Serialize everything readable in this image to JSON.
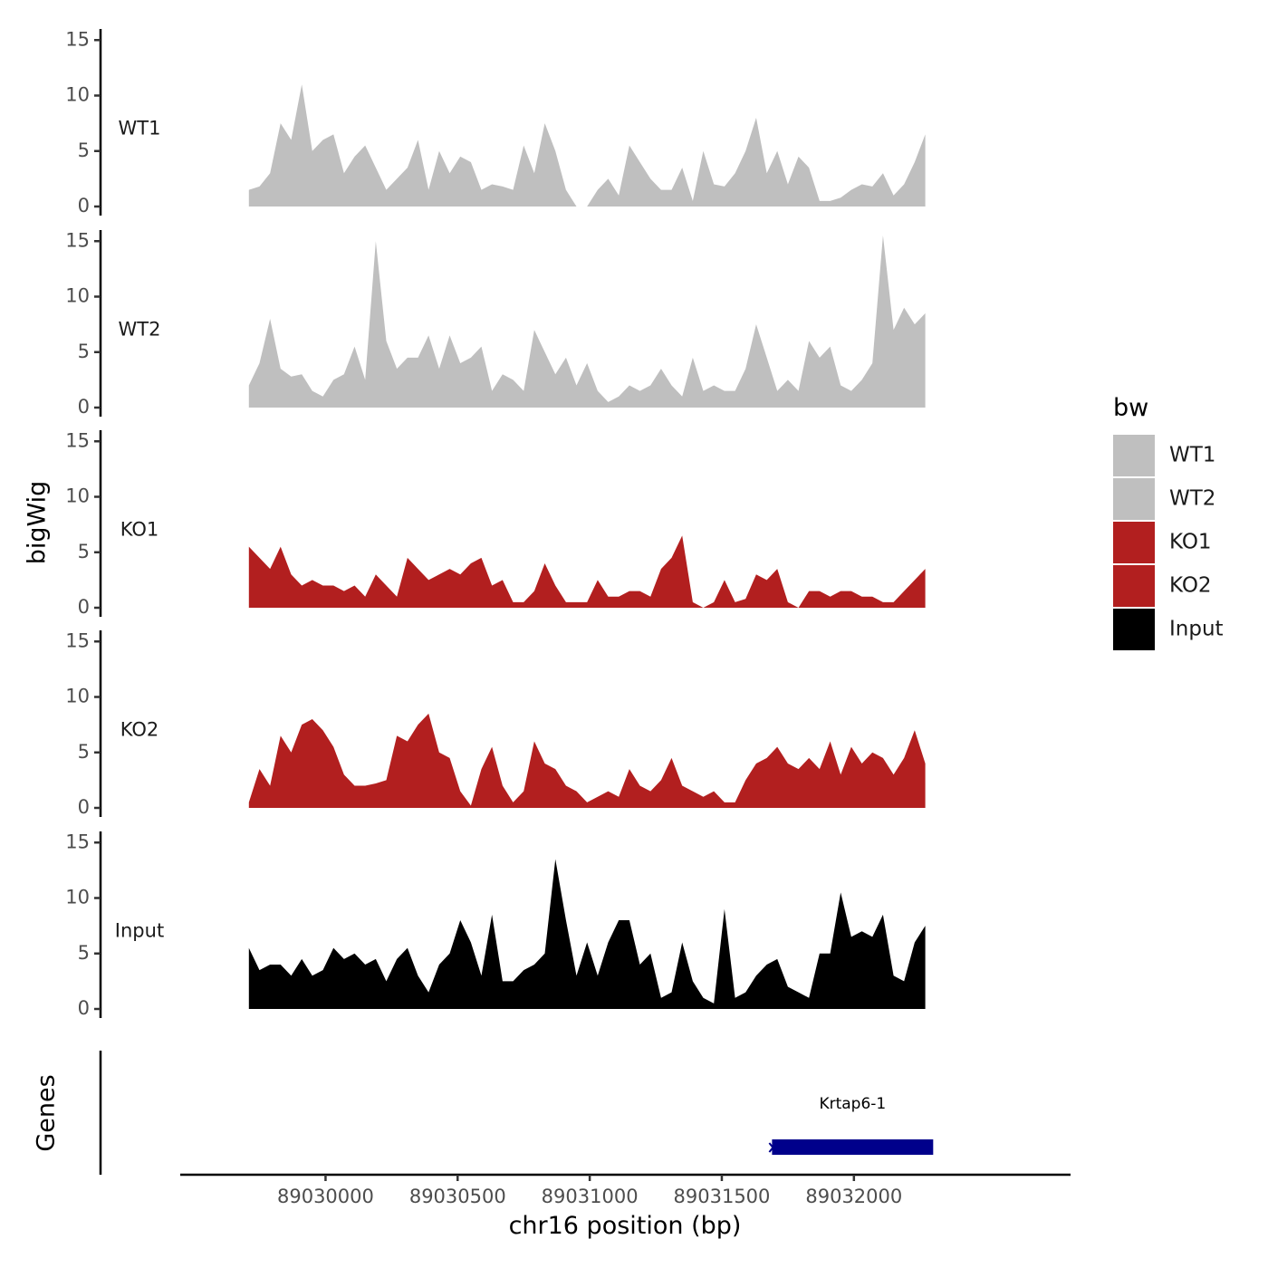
{
  "chart_data": {
    "type": "area",
    "title": "",
    "ylabel": "bigWig",
    "xlabel": "chr16 position (bp)",
    "xlim": [
      89029450,
      89032820
    ],
    "ylim": [
      0,
      16
    ],
    "yticks": [
      0,
      5,
      10,
      15
    ],
    "xticks": [
      89030000,
      89030500,
      89031000,
      89031500,
      89032000
    ],
    "gene_track_label": "Genes",
    "legend": {
      "title": "bw",
      "position": "right",
      "entries": [
        {
          "label": "WT1",
          "color": "#bfbfbf"
        },
        {
          "label": "WT2",
          "color": "#bfbfbf"
        },
        {
          "label": "KO1",
          "color": "#b21f1f"
        },
        {
          "label": "KO2",
          "color": "#b21f1f"
        },
        {
          "label": "Input",
          "color": "#000000"
        }
      ]
    },
    "x": [
      89029710,
      89029750,
      89029790,
      89029830,
      89029870,
      89029910,
      89029950,
      89029990,
      89030030,
      89030070,
      89030110,
      89030150,
      89030190,
      89030230,
      89030270,
      89030310,
      89030350,
      89030390,
      89030430,
      89030470,
      89030510,
      89030550,
      89030590,
      89030630,
      89030670,
      89030710,
      89030750,
      89030790,
      89030830,
      89030870,
      89030910,
      89030950,
      89030990,
      89031030,
      89031070,
      89031110,
      89031150,
      89031190,
      89031230,
      89031270,
      89031310,
      89031350,
      89031390,
      89031430,
      89031470,
      89031510,
      89031550,
      89031590,
      89031630,
      89031670,
      89031710,
      89031750,
      89031790,
      89031830,
      89031870,
      89031910,
      89031950,
      89031990,
      89032030,
      89032070,
      89032110,
      89032150,
      89032190,
      89032230,
      89032270
    ],
    "series": [
      {
        "name": "WT1",
        "color": "#bfbfbf",
        "values": [
          1.5,
          1.8,
          3.0,
          7.5,
          6.0,
          11.0,
          5.0,
          6.0,
          6.5,
          3.0,
          4.5,
          5.5,
          3.5,
          1.5,
          2.5,
          3.5,
          6.0,
          1.5,
          5.0,
          3.0,
          4.5,
          4.0,
          1.5,
          2.0,
          1.8,
          1.5,
          5.5,
          3.0,
          7.5,
          5.0,
          1.5,
          0.0,
          0.0,
          1.5,
          2.5,
          1.0,
          5.5,
          4.0,
          2.5,
          1.5,
          1.5,
          3.5,
          0.5,
          5.0,
          2.0,
          1.8,
          3.0,
          5.0,
          8.0,
          3.0,
          5.0,
          2.0,
          4.5,
          3.5,
          0.5,
          0.5,
          0.8,
          1.5,
          2.0,
          1.8,
          3.0,
          1.0,
          2.0,
          4.0,
          6.5
        ]
      },
      {
        "name": "WT2",
        "color": "#bfbfbf",
        "values": [
          2.0,
          4.0,
          8.0,
          3.5,
          2.8,
          3.0,
          1.5,
          1.0,
          2.5,
          3.0,
          5.5,
          2.5,
          15.0,
          6.0,
          3.5,
          4.5,
          4.5,
          6.5,
          3.5,
          6.5,
          4.0,
          4.5,
          5.5,
          1.5,
          3.0,
          2.5,
          1.5,
          7.0,
          5.0,
          3.0,
          4.5,
          2.0,
          4.0,
          1.5,
          0.5,
          1.0,
          2.0,
          1.5,
          2.0,
          3.5,
          2.0,
          1.0,
          4.5,
          1.5,
          2.0,
          1.5,
          1.5,
          3.5,
          7.5,
          4.5,
          1.5,
          2.5,
          1.5,
          6.0,
          4.5,
          5.5,
          2.0,
          1.5,
          2.5,
          4.0,
          15.5,
          7.0,
          9.0,
          7.5,
          8.5
        ]
      },
      {
        "name": "KO1",
        "color": "#b21f1f",
        "values": [
          5.5,
          4.5,
          3.5,
          5.5,
          3.0,
          2.0,
          2.5,
          2.0,
          2.0,
          1.5,
          2.0,
          1.0,
          3.0,
          2.0,
          1.0,
          4.5,
          3.5,
          2.5,
          3.0,
          3.5,
          3.0,
          4.0,
          4.5,
          2.0,
          2.5,
          0.5,
          0.5,
          1.5,
          4.0,
          2.0,
          0.5,
          0.5,
          0.5,
          2.5,
          1.0,
          1.0,
          1.5,
          1.5,
          1.0,
          3.5,
          4.5,
          6.5,
          0.5,
          0.0,
          0.5,
          2.5,
          0.5,
          0.8,
          3.0,
          2.5,
          3.5,
          0.5,
          0.0,
          1.5,
          1.5,
          1.0,
          1.5,
          1.5,
          1.0,
          1.0,
          0.5,
          0.5,
          1.5,
          2.5,
          3.5
        ]
      },
      {
        "name": "KO2",
        "color": "#b21f1f",
        "values": [
          0.5,
          3.5,
          2.0,
          6.5,
          5.0,
          7.5,
          8.0,
          7.0,
          5.5,
          3.0,
          2.0,
          2.0,
          2.2,
          2.5,
          6.5,
          6.0,
          7.5,
          8.5,
          5.0,
          4.5,
          1.5,
          0.2,
          3.5,
          5.5,
          2.0,
          0.5,
          1.5,
          6.0,
          4.0,
          3.5,
          2.0,
          1.5,
          0.5,
          1.0,
          1.5,
          1.0,
          3.5,
          2.0,
          1.5,
          2.5,
          4.5,
          2.0,
          1.5,
          1.0,
          1.5,
          0.5,
          0.5,
          2.5,
          4.0,
          4.5,
          5.5,
          4.0,
          3.5,
          4.5,
          3.5,
          6.0,
          3.0,
          5.5,
          4.0,
          5.0,
          4.5,
          3.0,
          4.5,
          7.0,
          4.0
        ]
      },
      {
        "name": "Input",
        "color": "#000000",
        "values": [
          5.5,
          3.5,
          4.0,
          4.0,
          3.0,
          4.5,
          3.0,
          3.5,
          5.5,
          4.5,
          5.0,
          4.0,
          4.5,
          2.5,
          4.5,
          5.5,
          3.0,
          1.5,
          4.0,
          5.0,
          8.0,
          6.0,
          3.0,
          8.5,
          2.5,
          2.5,
          3.5,
          4.0,
          5.0,
          13.5,
          8.0,
          3.0,
          6.0,
          3.0,
          6.0,
          8.0,
          8.0,
          4.0,
          5.0,
          1.0,
          1.5,
          6.0,
          2.5,
          1.0,
          0.5,
          9.0,
          1.0,
          1.5,
          3.0,
          4.0,
          4.5,
          2.0,
          1.5,
          1.0,
          5.0,
          5.0,
          10.5,
          6.5,
          7.0,
          6.5,
          8.5,
          3.0,
          2.5,
          6.0,
          7.5
        ]
      }
    ],
    "genes": [
      {
        "name": "Krtap6-1",
        "start": 89031690,
        "end": 89032300,
        "color": "#00008b"
      }
    ]
  }
}
